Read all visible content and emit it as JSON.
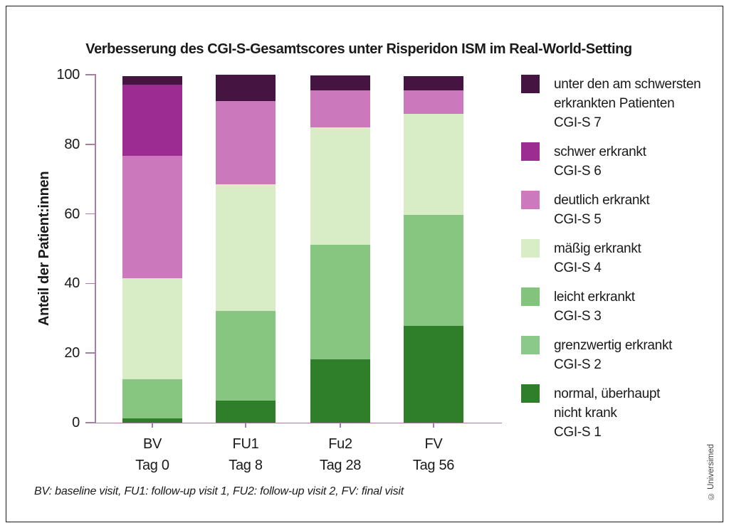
{
  "title": "Verbesserung des CGI-S-Gesamtscores unter Risperidon ISM im Real-World-Setting",
  "footnote": "BV: baseline visit, FU1: follow-up visit 1, FU2: follow-up visit 2, FV: final visit",
  "copyright": "© Universimed",
  "colors": {
    "axis": "#a77fa3",
    "text": "#1a1a1a"
  },
  "chart_data": {
    "type": "bar",
    "stacked": true,
    "title": "Verbesserung des CGI-S-Gesamtscores unter Risperidon ISM im Real-World-Setting",
    "xlabel": "",
    "ylabel": "Anteil der Patient:innen",
    "ylim": [
      0,
      100
    ],
    "yticks": [
      0,
      20,
      40,
      60,
      80,
      100
    ],
    "grid": false,
    "legend_position": "right",
    "categories": [
      "BV",
      "FU1",
      "Fu2",
      "FV"
    ],
    "category_sublabels": [
      "Tag 0",
      "Tag 8",
      "Tag 28",
      "Tag 56"
    ],
    "series": [
      {
        "name": "CGI-S 1 normal, überhaupt nicht krank",
        "color": "#2e7e2a",
        "values": [
          1.2,
          6.3,
          18.3,
          27.8
        ]
      },
      {
        "name": "CGI-S 2/3 grenzwertig bis leicht erkrankt",
        "color": "#87c681",
        "values": [
          11.2,
          25.8,
          32.8,
          32.0
        ]
      },
      {
        "name": "CGI-S 4 mäßig erkrankt",
        "color": "#d8ecc6",
        "values": [
          29.1,
          36.4,
          33.8,
          28.9
        ]
      },
      {
        "name": "CGI-S 5 deutlich erkrankt",
        "color": "#cb79bc",
        "values": [
          35.1,
          23.9,
          10.6,
          6.8
        ]
      },
      {
        "name": "CGI-S 6 schwer erkrankt",
        "color": "#9c2b92",
        "values": [
          20.6,
          0,
          0,
          0
        ]
      },
      {
        "name": "CGI-S 7 unter den am schwersten erkrankten Patienten",
        "color": "#461441",
        "values": [
          2.5,
          7.6,
          4.2,
          4.0
        ]
      }
    ]
  },
  "legend": {
    "items": [
      {
        "color": "#461441",
        "lines": [
          "unter den am schwersten",
          "erkrankten Patienten",
          "CGI-S 7"
        ]
      },
      {
        "color": "#9c2b92",
        "lines": [
          "schwer erkrankt",
          "CGI-S 6"
        ]
      },
      {
        "color": "#cc7abd",
        "lines": [
          "deutlich erkrankt",
          "CGI-S 5"
        ]
      },
      {
        "color": "#d8ecc6",
        "lines": [
          "mäßig erkrankt",
          "CGI-S 4"
        ]
      },
      {
        "color": "#83c47c",
        "lines": [
          "leicht erkrankt",
          "CGI-S 3"
        ]
      },
      {
        "color": "#8bc98b",
        "lines": [
          "grenzwertig erkrankt",
          "CGI-S 2"
        ]
      },
      {
        "color": "#2e7e2a",
        "lines": [
          "normal, überhaupt",
          "nicht krank",
          "CGI-S 1"
        ]
      }
    ]
  }
}
